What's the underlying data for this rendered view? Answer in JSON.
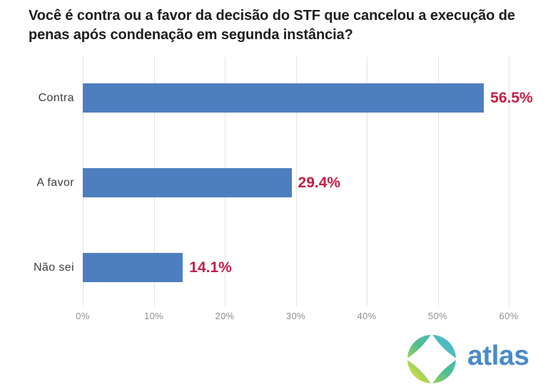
{
  "chart_data": {
    "type": "bar",
    "orientation": "horizontal",
    "title": "Você é contra ou a favor da decisão do STF que cancelou a execução de penas após condenação em segunda instância?",
    "categories": [
      "Contra",
      "A favor",
      "Não sei"
    ],
    "values": [
      56.5,
      29.4,
      14.1
    ],
    "value_labels": [
      "56.5%",
      "29.4%",
      "14.1%"
    ],
    "x_tick_values": [
      0,
      10,
      20,
      30,
      40,
      50,
      60
    ],
    "x_tick_labels": [
      "0%",
      "10%",
      "20%",
      "30%",
      "40%",
      "50%",
      "60%"
    ],
    "xlim": [
      0,
      60
    ],
    "grid": "vertical",
    "legend": "none",
    "bar_color": "#4d7ebf",
    "value_label_color": "#c51e45",
    "gridline_color": "#e3e3e3"
  },
  "branding": {
    "wordmark": "atlas",
    "wordmark_color": "#4a8bc9",
    "compass_gradient": [
      "#f6e52c",
      "#4fbe8d",
      "#4cb9ea"
    ]
  }
}
